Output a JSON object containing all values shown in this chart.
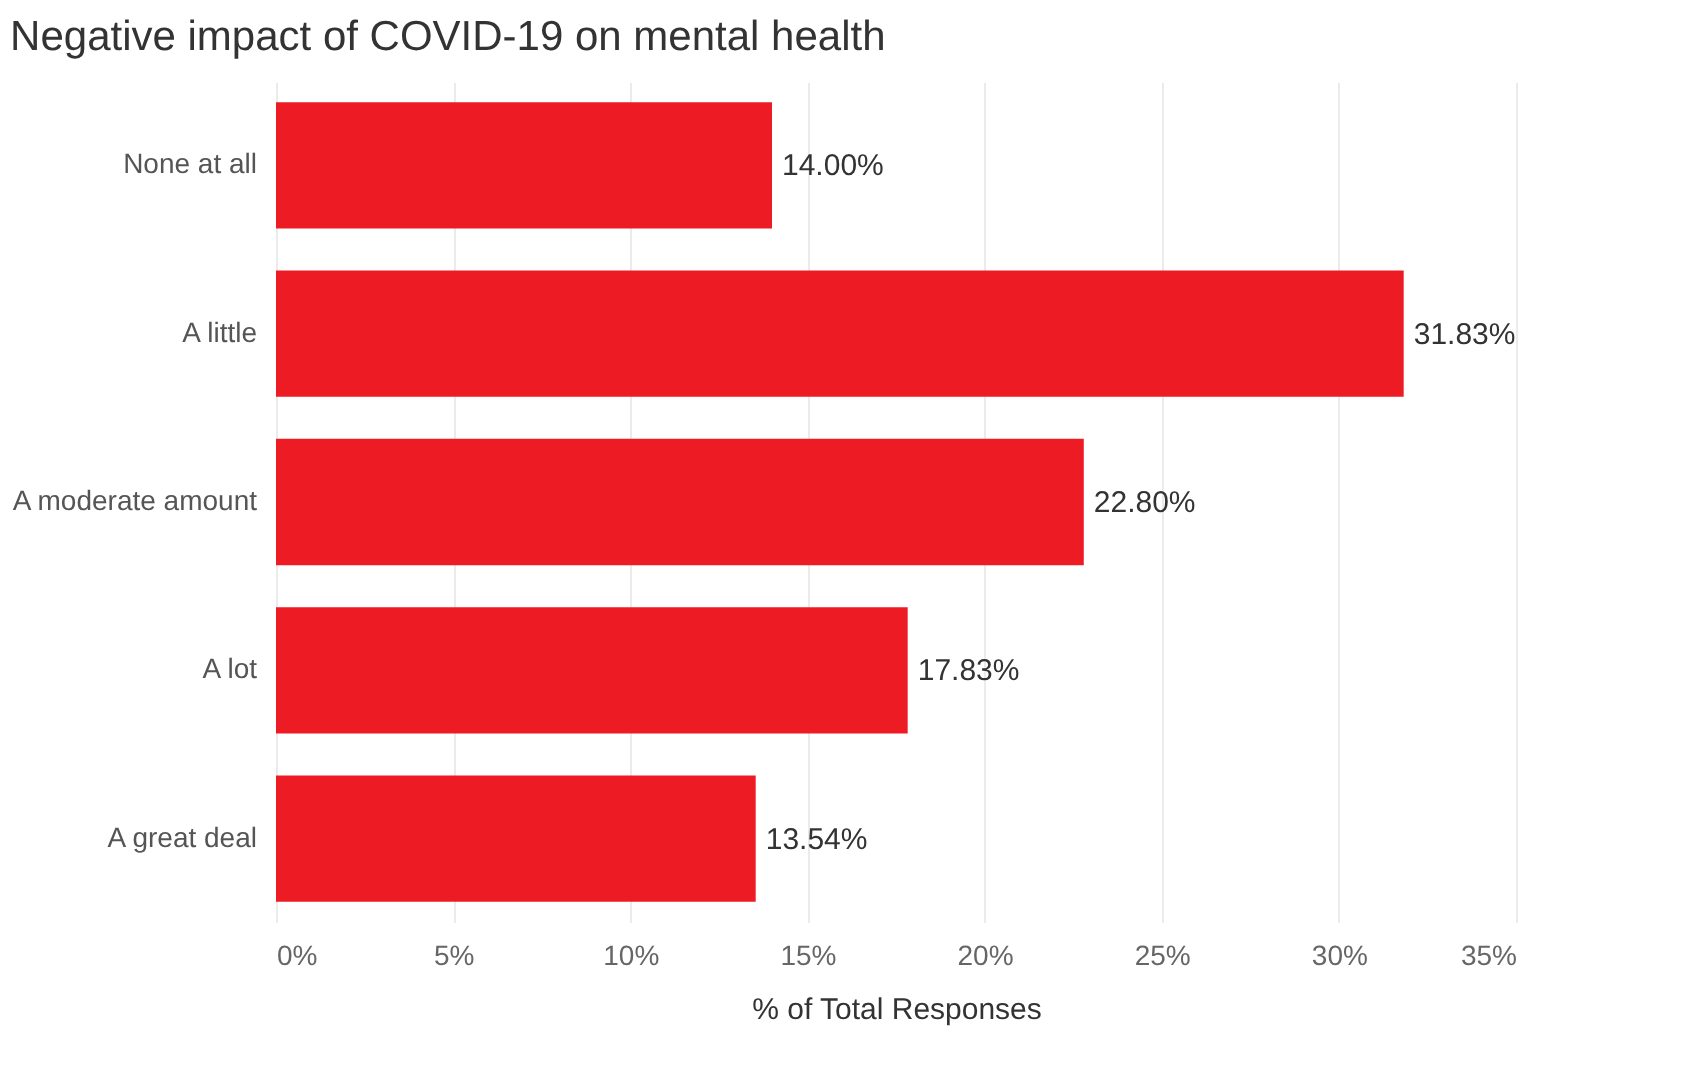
{
  "chart_data": {
    "type": "bar",
    "orientation": "horizontal",
    "title": "Negative impact of COVID-19 on mental health",
    "xlabel": "% of Total Responses",
    "categories": [
      "None at all",
      "A little",
      "A moderate amount",
      "A lot",
      "A great deal"
    ],
    "values": [
      14.0,
      31.83,
      22.8,
      17.83,
      13.54
    ],
    "value_labels": [
      "14.00%",
      "31.83%",
      "22.80%",
      "17.83%",
      "13.54%"
    ],
    "color": "#ed1c24",
    "xlim": [
      0,
      35
    ],
    "xticks": [
      {
        "value": 0,
        "label": "0%"
      },
      {
        "value": 5,
        "label": "5%"
      },
      {
        "value": 10,
        "label": "10%"
      },
      {
        "value": 15,
        "label": "15%"
      },
      {
        "value": 20,
        "label": "20%"
      },
      {
        "value": 25,
        "label": "25%"
      },
      {
        "value": 30,
        "label": "30%"
      },
      {
        "value": 35,
        "label": "35%"
      }
    ],
    "grid": "x"
  }
}
